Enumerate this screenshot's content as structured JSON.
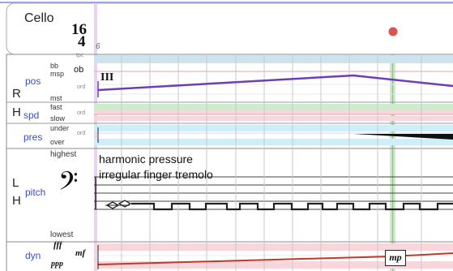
{
  "instrument": {
    "name": "Cello"
  },
  "time_signature": {
    "top": "16",
    "bottom": "4"
  },
  "measure_number": "6",
  "tracks": {
    "right_group_letter": "R",
    "left_group_letter": "L",
    "h_letter": "H",
    "pos": {
      "label": "pos",
      "levels": [
        "tpc",
        "bb",
        "ob",
        "msp",
        "ord",
        "mst"
      ],
      "marker": "III"
    },
    "spd": {
      "label": "spd",
      "levels": [
        "fast",
        "ord",
        "slow"
      ]
    },
    "pres": {
      "label": "pres",
      "levels": [
        "under",
        "ord",
        "over"
      ]
    },
    "pitch": {
      "label": "pitch",
      "range_top": "highest",
      "range_bottom": "lowest",
      "technique_lines": [
        "harmonic pressure",
        "irregular finger tremolo"
      ],
      "clef": "𝄢"
    },
    "dyn": {
      "label": "dyn",
      "levels": [
        "fff",
        "mf",
        "ppp"
      ],
      "marking": "mp"
    }
  },
  "colors": {
    "measure_bar": "#e6cdef",
    "playhead": "#8fc68a",
    "playhead_dot": "#d9534f",
    "pos_line": "#6a3fb8",
    "dyn_line": "#c0392b",
    "accent_blue": "#3b4fb8"
  }
}
